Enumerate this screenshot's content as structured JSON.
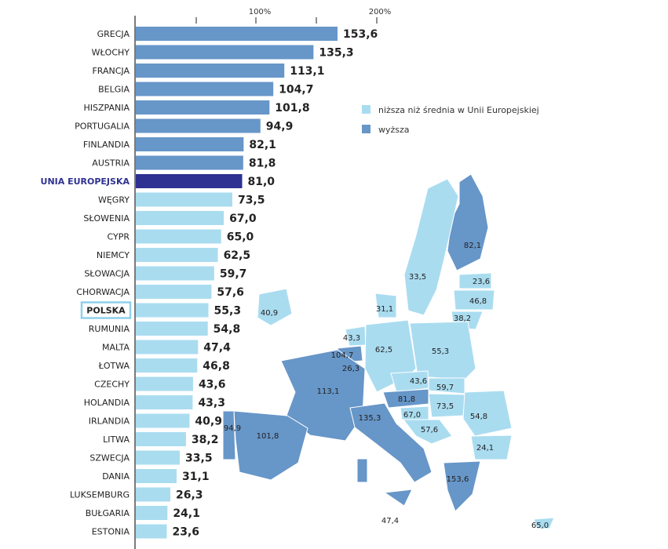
{
  "colors": {
    "higher": "#6796c8",
    "lower": "#aadcf0",
    "eu": "#2e3192",
    "polska_box": "#8fd0ea"
  },
  "legend": [
    {
      "label": "niższa niż średnia w Unii Europejskiej",
      "kind": "lower"
    },
    {
      "label": "wyższa",
      "kind": "higher"
    }
  ],
  "chart_data": {
    "type": "bar",
    "orientation": "horizontal",
    "axis_tick_labels": [
      "100%",
      "200%"
    ],
    "categories": [
      "GRECJA",
      "WŁOCHY",
      "FRANCJA",
      "BELGIA",
      "HISZPANIA",
      "PORTUGALIA",
      "FINLANDIA",
      "AUSTRIA",
      "UNIA EUROPEJSKA",
      "WĘGRY",
      "SŁOWENIA",
      "CYPR",
      "NIEMCY",
      "SŁOWACJA",
      "CHORWACJA",
      "POLSKA",
      "RUMUNIA",
      "MALTA",
      "ŁOTWA",
      "CZECHY",
      "HOLANDIA",
      "IRLANDIA",
      "LITWA",
      "SZWECJA",
      "DANIA",
      "LUKSEMBURG",
      "BUŁGARIA",
      "ESTONIA"
    ],
    "values": [
      153.6,
      135.3,
      113.1,
      104.7,
      101.8,
      94.9,
      82.1,
      81.8,
      81.0,
      73.5,
      67.0,
      65.0,
      62.5,
      59.7,
      57.6,
      55.3,
      54.8,
      47.4,
      46.8,
      43.6,
      43.3,
      40.9,
      38.2,
      33.5,
      31.1,
      26.3,
      24.1,
      23.6
    ],
    "value_labels": [
      "153,6",
      "135,3",
      "113,1",
      "104,7",
      "101,8",
      "94,9",
      "82,1",
      "81,8",
      "81,0",
      "73,5",
      "67,0",
      "65,0",
      "62,5",
      "59,7",
      "57,6",
      "55,3",
      "54,8",
      "47,4",
      "46,8",
      "43,6",
      "43,3",
      "40,9",
      "38,2",
      "33,5",
      "31,1",
      "26,3",
      "24,1",
      "23,6"
    ],
    "highlight": {
      "eu": "UNIA EUROPEJSKA",
      "boxed": "POLSKA"
    },
    "xlim": [
      0,
      200
    ]
  },
  "map": {
    "labels": {
      "finland": "82,1",
      "sweden": "33,5",
      "estonia": "23,6",
      "latvia": "46,8",
      "lithuania": "38,2",
      "denmark": "31,1",
      "ireland": "40,9",
      "netherlands": "43,3",
      "belgium": "104,7",
      "luxembourg": "26,3",
      "germany": "62,5",
      "poland": "55,3",
      "france": "113,1",
      "czechia": "43,6",
      "austria": "81,8",
      "slovakia": "59,7",
      "hungary": "73,5",
      "slovenia": "67,0",
      "croatia": "57,6",
      "romania": "54,8",
      "bulgaria": "24,1",
      "italy": "135,3",
      "spain": "101,8",
      "portugal": "94,9",
      "greece": "153,6",
      "malta": "47,4",
      "cyprus": "65,0"
    }
  }
}
